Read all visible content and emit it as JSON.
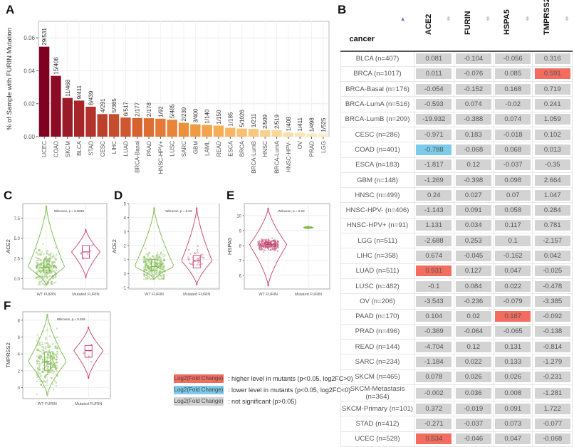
{
  "panels": {
    "A": "A",
    "B": "B",
    "C": "C",
    "D": "D",
    "E": "E",
    "F": "F"
  },
  "chart_data": [
    {
      "id": "A",
      "type": "bar",
      "title": "",
      "xlabel": "",
      "ylabel": "% of Sample with FURIN Mutation",
      "ylim": [
        0,
        0.07
      ],
      "yticks": [
        0.0,
        0.02,
        0.04,
        0.06
      ],
      "ytick_labels": [
        "0.00",
        "0.02",
        "0.04",
        "0.06"
      ],
      "grid": true,
      "categories": [
        "UCEC",
        "COAD",
        "SKCM",
        "BLCA",
        "STAD",
        "CESC",
        "LIHC",
        "LUAD",
        "BRCA-Basal",
        "PAAD",
        "HNSC-HPV+",
        "LUSC",
        "SARC",
        "GBM",
        "LAML",
        "READ",
        "ESCA",
        "BRCA",
        "BRCA-LumB",
        "HNSC",
        "BRCA-LumA",
        "HNSC-HPV-",
        "OV",
        "PRAD",
        "LGG"
      ],
      "values": [
        0.0546,
        0.0369,
        0.0235,
        0.0219,
        0.0182,
        0.0137,
        0.0137,
        0.0116,
        0.0113,
        0.0112,
        0.0109,
        0.0103,
        0.0084,
        0.0075,
        0.0071,
        0.0067,
        0.0054,
        0.0049,
        0.0047,
        0.0039,
        0.0039,
        0.0025,
        0.0024,
        0.002,
        0.0019
      ],
      "data_labels": [
        "29/531",
        "15/406",
        "11/468",
        "9/411",
        "8/439",
        "4/291",
        "5/365",
        "6/517",
        "2/177",
        "2/178",
        "1/92",
        "5/485",
        "2/239",
        "3/400",
        "1/140",
        "1/150",
        "1/185",
        "5/1026",
        "1/211",
        "2/509",
        "2/519",
        "1/408",
        "1/411",
        "1/498",
        "1/525"
      ],
      "colors": [
        "#7f0021",
        "#8d0c25",
        "#9a1a28",
        "#a6262a",
        "#b2332c",
        "#bd402d",
        "#c64c2e",
        "#cf572f",
        "#d66230",
        "#dd6e32",
        "#e37a35",
        "#e88538",
        "#ec903c",
        "#f09a43",
        "#f3a44c",
        "#f5ad57",
        "#f7b663",
        "#f8bf70",
        "#f9c77e",
        "#fad08c",
        "#fbd89a",
        "#fbdea7",
        "#fce4b3",
        "#fce9bf",
        "#fdeecb"
      ]
    },
    {
      "id": "C",
      "type": "violin",
      "ylabel": "ACE2",
      "categories": [
        "WT FURIN",
        "Mutated FURIN"
      ],
      "yticks": [
        0.0,
        2.5,
        5.0,
        7.5
      ],
      "ytick_labels": [
        "0.0",
        "2.5",
        "5.0",
        "7.5"
      ],
      "ylim": [
        -1.3,
        9.3
      ],
      "annotation": "Wilcoxon, p = 0.0039",
      "groups": [
        {
          "name": "WT FURIN",
          "color": "#7ab648",
          "min": -0.8,
          "max": 9.0,
          "median": 1.4,
          "q1": 0.7,
          "q3": 2.3,
          "n_points": 400
        },
        {
          "name": "Mutated FURIN",
          "color": "#c2416a",
          "min": 0.1,
          "max": 6.1,
          "median": 3.3,
          "q1": 2.5,
          "q3": 4.1,
          "n_points": 7
        }
      ]
    },
    {
      "id": "D",
      "type": "violin",
      "ylabel": "ACE2",
      "categories": [
        "WT FURIN",
        "Mutated FURIN"
      ],
      "yticks": [
        -1,
        0,
        1,
        2,
        3,
        4,
        5
      ],
      "ytick_labels": [
        "-1",
        "0",
        "1",
        "2",
        "3",
        "4",
        "5"
      ],
      "ylim": [
        -1.1,
        5.0
      ],
      "annotation": "Wilcoxon, p = 0.03",
      "groups": [
        {
          "name": "WT FURIN",
          "color": "#7ab648",
          "min": -0.4,
          "max": 4.7,
          "median": 0.5,
          "q1": 0.2,
          "q3": 1.0,
          "n_points": 350
        },
        {
          "name": "Mutated FURIN",
          "color": "#c2416a",
          "min": -0.8,
          "max": 4.7,
          "median": 0.9,
          "q1": 0.4,
          "q3": 1.3,
          "n_points": 30
        }
      ]
    },
    {
      "id": "E",
      "type": "violin",
      "ylabel": "HSPA5",
      "categories": [
        "WT FURIN",
        "Mutated FURIN"
      ],
      "yticks": [
        6,
        7,
        8,
        9,
        10
      ],
      "ytick_labels": [
        "6",
        "7",
        "8",
        "9",
        "10"
      ],
      "ylim": [
        5.1,
        10.8
      ],
      "annotation": "Wilcoxon, p = 0.03",
      "groups": [
        {
          "name": "WT FURIN",
          "color": "#c2416a",
          "min": 5.3,
          "max": 10.5,
          "median": 8.05,
          "q1": 7.9,
          "q3": 8.2,
          "n_points": 200
        },
        {
          "name": "Mutated FURIN",
          "color": "#7ab648",
          "min": 9.1,
          "max": 9.3,
          "median": 9.2,
          "q1": 9.15,
          "q3": 9.25,
          "n_points": 2
        }
      ]
    },
    {
      "id": "F",
      "type": "violin",
      "ylabel": "TMPRSS2",
      "categories": [
        "WT FURIN",
        "Mutated FURIN"
      ],
      "yticks": [
        0,
        2,
        4,
        6,
        8
      ],
      "ytick_labels": [
        "0",
        "2",
        "4",
        "6",
        "8"
      ],
      "ylim": [
        -1.3,
        9.0
      ],
      "annotation": "Wilcoxon, p = 0.019",
      "groups": [
        {
          "name": "WT FURIN",
          "color": "#7ab648",
          "min": -0.9,
          "max": 8.7,
          "median": 3.1,
          "q1": 2.0,
          "q3": 4.2,
          "n_points": 500
        },
        {
          "name": "Mutated FURIN",
          "color": "#c2416a",
          "min": 1.1,
          "max": 7.2,
          "median": 4.4,
          "q1": 3.6,
          "q3": 5.0,
          "n_points": 6
        }
      ]
    },
    {
      "id": "B",
      "type": "table",
      "columns": [
        "cancer",
        "ACE2",
        "FURIN",
        "HSPA5",
        "TMPRSS2"
      ],
      "rows": [
        {
          "cancer": "BLCA (n=407)",
          "values": [
            "0.081",
            "-0.104",
            "-0.056",
            "0.316"
          ],
          "status": [
            "ns",
            "ns",
            "ns",
            "ns"
          ]
        },
        {
          "cancer": "BRCA (n=1017)",
          "values": [
            "0.011",
            "-0.076",
            "0.085",
            "0.591"
          ],
          "status": [
            "ns",
            "ns",
            "ns",
            "up"
          ]
        },
        {
          "cancer": "BRCA-Basal (n=176)",
          "values": [
            "-0.054",
            "-0.152",
            "0.168",
            "0.719"
          ],
          "status": [
            "ns",
            "ns",
            "ns",
            "ns"
          ]
        },
        {
          "cancer": "BRCA-LumA (n=516)",
          "values": [
            "-0.593",
            "0.074",
            "-0.02",
            "0.241"
          ],
          "status": [
            "ns",
            "ns",
            "ns",
            "ns"
          ]
        },
        {
          "cancer": "BRCA-LumB (n=209)",
          "values": [
            "-19.932",
            "-0.388",
            "0.074",
            "1.059"
          ],
          "status": [
            "ns",
            "ns",
            "ns",
            "ns"
          ]
        },
        {
          "cancer": "CESC (n=286)",
          "values": [
            "-0.971",
            "0.183",
            "-0.018",
            "0.102"
          ],
          "status": [
            "ns",
            "ns",
            "ns",
            "ns"
          ]
        },
        {
          "cancer": "COAD (n=401)",
          "values": [
            "-0.788",
            "-0.068",
            "0.068",
            "0.013"
          ],
          "status": [
            "down",
            "ns",
            "ns",
            "ns"
          ]
        },
        {
          "cancer": "ESCA (n=183)",
          "values": [
            "-1.817",
            "0.12",
            "-0.037",
            "-0.35"
          ],
          "status": [
            "ns",
            "ns",
            "ns",
            "ns"
          ]
        },
        {
          "cancer": "GBM (n=148)",
          "values": [
            "-1.269",
            "-0.398",
            "0.098",
            "2.664"
          ],
          "status": [
            "ns",
            "ns",
            "ns",
            "ns"
          ]
        },
        {
          "cancer": "HNSC (n=499)",
          "values": [
            "0.24",
            "0.027",
            "0.07",
            "1.047"
          ],
          "status": [
            "ns",
            "ns",
            "ns",
            "ns"
          ]
        },
        {
          "cancer": "HNSC-HPV- (n=406)",
          "values": [
            "-1.143",
            "0.091",
            "0.058",
            "0.284"
          ],
          "status": [
            "ns",
            "ns",
            "ns",
            "ns"
          ]
        },
        {
          "cancer": "HNSC-HPV+ (n=91)",
          "values": [
            "1.131",
            "0.034",
            "0.117",
            "0.781"
          ],
          "status": [
            "ns",
            "ns",
            "ns",
            "ns"
          ]
        },
        {
          "cancer": "LGG (n=511)",
          "values": [
            "-2.688",
            "0.253",
            "0.1",
            "-2.157"
          ],
          "status": [
            "ns",
            "ns",
            "ns",
            "ns"
          ]
        },
        {
          "cancer": "LIHC (n=358)",
          "values": [
            "0.674",
            "-0.045",
            "-0.162",
            "0.042"
          ],
          "status": [
            "ns",
            "ns",
            "ns",
            "ns"
          ]
        },
        {
          "cancer": "LUAD (n=511)",
          "values": [
            "0.931",
            "0.127",
            "0.047",
            "-0.025"
          ],
          "status": [
            "up",
            "ns",
            "ns",
            "ns"
          ]
        },
        {
          "cancer": "LUSC (n=482)",
          "values": [
            "-0.1",
            "0.084",
            "0.022",
            "-0.478"
          ],
          "status": [
            "ns",
            "ns",
            "ns",
            "ns"
          ]
        },
        {
          "cancer": "OV (n=206)",
          "values": [
            "-3.543",
            "-0.236",
            "-0.079",
            "-3.385"
          ],
          "status": [
            "ns",
            "ns",
            "ns",
            "ns"
          ]
        },
        {
          "cancer": "PAAD (n=170)",
          "values": [
            "0.104",
            "0.02",
            "0.187",
            "-0.092"
          ],
          "status": [
            "ns",
            "ns",
            "up",
            "ns"
          ]
        },
        {
          "cancer": "PRAD (n=496)",
          "values": [
            "-0.369",
            "-0.064",
            "-0.065",
            "-0.138"
          ],
          "status": [
            "ns",
            "ns",
            "ns",
            "ns"
          ]
        },
        {
          "cancer": "READ (n=144)",
          "values": [
            "-4.704",
            "0.12",
            "0.131",
            "-0.814"
          ],
          "status": [
            "ns",
            "ns",
            "ns",
            "ns"
          ]
        },
        {
          "cancer": "SARC (n=234)",
          "values": [
            "-1.184",
            "0.022",
            "0.133",
            "-1.279"
          ],
          "status": [
            "ns",
            "ns",
            "ns",
            "ns"
          ]
        },
        {
          "cancer": "SKCM (n=465)",
          "values": [
            "0.078",
            "0.026",
            "0.026",
            "-0.231"
          ],
          "status": [
            "ns",
            "ns",
            "ns",
            "ns"
          ]
        },
        {
          "cancer": "SKCM-Metastasis (n=364)",
          "values": [
            "-0.002",
            "0.036",
            "0.008",
            "-1.281"
          ],
          "status": [
            "ns",
            "ns",
            "ns",
            "ns"
          ]
        },
        {
          "cancer": "SKCM-Primary (n=101)",
          "values": [
            "0.372",
            "-0.019",
            "0.091",
            "1.722"
          ],
          "status": [
            "ns",
            "ns",
            "ns",
            "ns"
          ]
        },
        {
          "cancer": "STAD (n=412)",
          "values": [
            "-0.271",
            "-0.037",
            "0.073",
            "-0.077"
          ],
          "status": [
            "ns",
            "ns",
            "ns",
            "ns"
          ]
        },
        {
          "cancer": "UCEC (n=528)",
          "values": [
            "0.534",
            "-0.046",
            "0.047",
            "-0.068"
          ],
          "status": [
            "up",
            "ns",
            "ns",
            "ns"
          ]
        }
      ]
    }
  ],
  "legend": {
    "chip_label": "Log2(Fold Change)",
    "items": [
      {
        "kind": "up",
        "color": "#f26c5f",
        "text": ": higher level in mutants (p<0.05, log2FC>0)"
      },
      {
        "kind": "down",
        "color": "#7ccbea",
        "text": ": lower level in mutants (p<0.05, log2FC<0)"
      },
      {
        "kind": "ns",
        "color": "#d3d3d3",
        "text": ": not significant (p>0.05)"
      }
    ]
  },
  "sort_icons": {
    "active": "▲",
    "inactive": "⬍"
  }
}
